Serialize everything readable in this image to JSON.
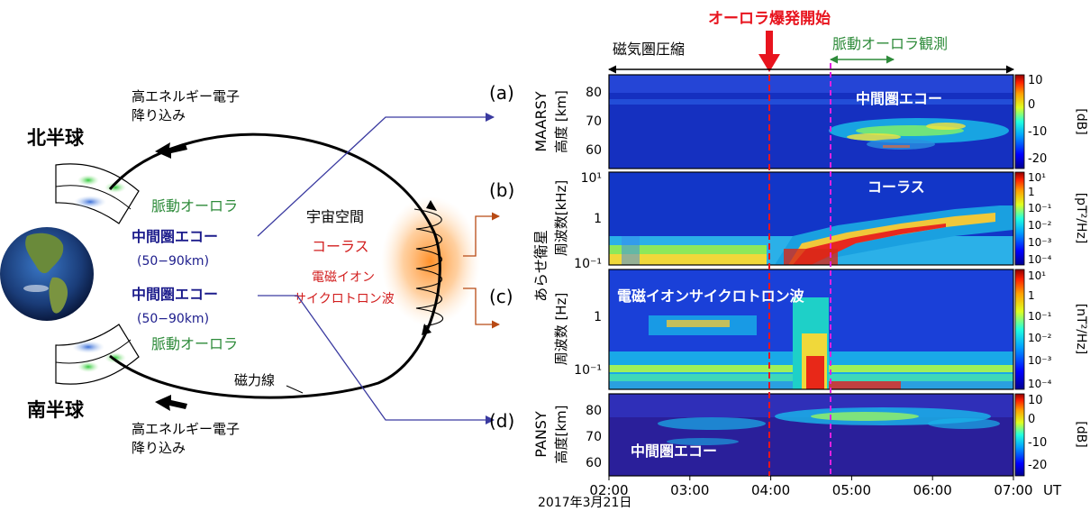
{
  "left_diagram": {
    "north_hemisphere": "北半球",
    "south_hemisphere": "南半球",
    "electron_precip_top": [
      "高エネルギー電子",
      "降り込み"
    ],
    "electron_precip_bottom": [
      "高エネルギー電子",
      "降り込み"
    ],
    "pulsating_aurora_top": "脈動オーロラ",
    "pulsating_aurora_bottom": "脈動オーロラ",
    "meso_echo_top": "中間圏エコー",
    "meso_range_top": "(50−90km)",
    "meso_echo_bottom": "中間圏エコー",
    "meso_range_bottom": "(50−90km)",
    "space": "宇宙空間",
    "chorus": "コーラス",
    "emic_line1": "電磁イオン",
    "emic_line2": "サイクロトロン波",
    "field_line": "磁力線"
  },
  "timeline": {
    "onset_label": "オーロラ爆発開始",
    "compression_label": "磁気圏圧縮",
    "pulsating_obs_label": "脈動オーロラ観測"
  },
  "panels": [
    {
      "letter": "(a)",
      "ylabel_outer": "MAARSY",
      "ylabel_inner": "高度 [km]",
      "yticks": [
        "80",
        "70",
        "60"
      ],
      "overlay": "中間圏エコー",
      "cb_ticks": [
        "10",
        "0",
        "-10",
        "-20"
      ],
      "cb_unit": "[dB]"
    },
    {
      "letter": "(b)",
      "ylabel_outer": "あらせ衛星",
      "ylabel_inner": "周波数[kHz]",
      "yticks": [
        "10¹",
        "1",
        "10⁻¹"
      ],
      "overlay": "コーラス",
      "cb_ticks": [
        "10¹",
        "1",
        "10⁻¹",
        "10⁻²",
        "10⁻³",
        "10⁻⁴"
      ],
      "cb_unit": "[pT²/Hz]"
    },
    {
      "letter": "(c)",
      "ylabel_outer": "",
      "ylabel_inner": "周波数 [Hz]",
      "yticks": [
        "1",
        "10⁻¹"
      ],
      "overlay": "電磁イオンサイクロトロン波",
      "cb_ticks": [
        "10¹",
        "1",
        "10⁻¹",
        "10⁻²",
        "10⁻³",
        "10⁻⁴"
      ],
      "cb_unit": "[nT²/Hz]"
    },
    {
      "letter": "(d)",
      "ylabel_outer": "PANSY",
      "ylabel_inner": "高度[km]",
      "yticks": [
        "80",
        "70",
        "60"
      ],
      "overlay": "中間圏エコー",
      "cb_ticks": [
        "10",
        "0",
        "-10",
        "-20"
      ],
      "cb_unit": "[dB]"
    }
  ],
  "xaxis": {
    "ticks": [
      "02:00",
      "03:00",
      "04:00",
      "05:00",
      "06:00",
      "07:00"
    ],
    "unit": "UT",
    "date": "2017年3月21日"
  },
  "colors": {
    "onset": "#e8141e",
    "pulsating": "#e020e0",
    "green_text": "#2e8b3a",
    "blue_text": "#1c1c8c",
    "red_text": "#d21e1e",
    "brown_arrow": "#b84a14",
    "connector": "#3a3aa0"
  }
}
